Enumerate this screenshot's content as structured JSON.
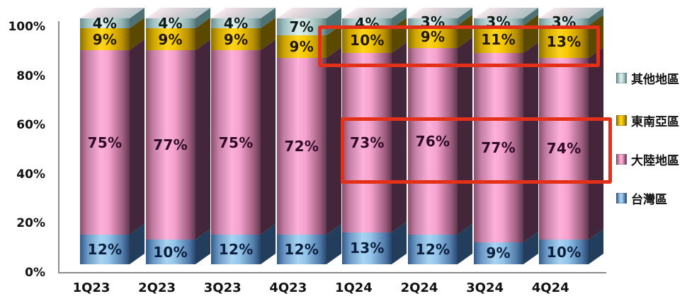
{
  "chart_data": {
    "type": "bar",
    "subtype": "stacked-100-percent-3d-columns",
    "title": "",
    "xlabel": "",
    "ylabel": "",
    "categories": [
      "1Q23",
      "2Q23",
      "3Q23",
      "4Q23",
      "1Q24",
      "2Q24",
      "3Q24",
      "4Q24"
    ],
    "series": [
      {
        "name": "台灣區",
        "color": "#7fb2e0",
        "values": [
          12,
          10,
          12,
          12,
          13,
          12,
          9,
          10
        ]
      },
      {
        "name": "大陸地區",
        "color": "#f2a2cc",
        "values": [
          75,
          77,
          75,
          72,
          73,
          76,
          77,
          74
        ]
      },
      {
        "name": "東南亞區",
        "color": "#f2c300",
        "values": [
          9,
          9,
          9,
          9,
          10,
          9,
          11,
          13
        ]
      },
      {
        "name": "其他地區",
        "color": "#c2dcda",
        "values": [
          4,
          4,
          4,
          7,
          4,
          3,
          3,
          3
        ]
      }
    ],
    "value_label_suffix": "%",
    "ylim": [
      0,
      100
    ],
    "y_ticks": [
      {
        "label": "0%",
        "value": 0
      },
      {
        "label": "20%",
        "value": 20
      },
      {
        "label": "40%",
        "value": 40
      },
      {
        "label": "60%",
        "value": 60
      },
      {
        "label": "80%",
        "value": 80
      },
      {
        "label": "100%",
        "value": 100
      }
    ],
    "grid": false,
    "legend_position": "right",
    "legend_order": [
      "其他地區",
      "東南亞區",
      "大陸地區",
      "台灣區"
    ],
    "annotations": [
      {
        "type": "highlight-box",
        "color": "#e43019",
        "series": "東南亞區",
        "categories": [
          "1Q24",
          "2Q24",
          "3Q24",
          "4Q24"
        ],
        "values_highlighted": [
          "10%",
          "9%",
          "11%",
          "13%"
        ]
      },
      {
        "type": "highlight-box",
        "color": "#e43019",
        "series": "大陸地區",
        "categories": [
          "1Q24",
          "2Q24",
          "3Q24",
          "4Q24"
        ],
        "values_highlighted": [
          "73%",
          "76%",
          "77%",
          "74%"
        ]
      }
    ]
  }
}
